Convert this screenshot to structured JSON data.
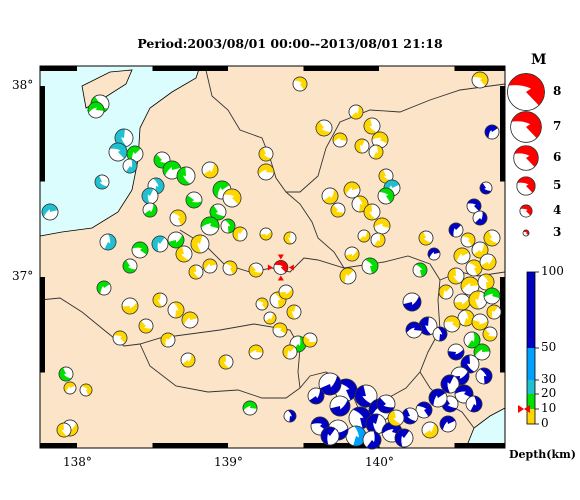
{
  "title": "Period:2003/08/01 00:00--2013/08/01 21:18",
  "lat_ticks": [
    {
      "value": 38,
      "label": "38°"
    },
    {
      "value": 37,
      "label": "37°"
    }
  ],
  "lon_ticks": [
    {
      "value": 138,
      "label": "138°"
    },
    {
      "value": 139,
      "label": "139°"
    },
    {
      "value": 140,
      "label": "140°"
    }
  ],
  "magnitude_legend": {
    "header": "M",
    "items": [
      {
        "m": 8,
        "label": "8"
      },
      {
        "m": 7,
        "label": "7"
      },
      {
        "m": 6,
        "label": "6"
      },
      {
        "m": 5,
        "label": "5"
      },
      {
        "m": 4,
        "label": "4"
      },
      {
        "m": 3,
        "label": "3"
      }
    ]
  },
  "depth_scale": {
    "label": "Depth(km)",
    "ticks": [
      {
        "value": 100,
        "label": "100"
      },
      {
        "value": 50,
        "label": "50"
      },
      {
        "value": 30,
        "label": "30"
      },
      {
        "value": 20,
        "label": "20"
      },
      {
        "value": 10,
        "label": "10"
      },
      {
        "value": 0,
        "label": "0"
      }
    ],
    "marker_depth": 10,
    "colors": {
      "shallow": "#ffd700",
      "mid1": "#00e000",
      "mid2": "#20c0d0",
      "mid3": "#00a0ff",
      "deep": "#0000c0"
    }
  },
  "map_colors": {
    "land": "#fbe4c8",
    "sea": "#dcfdfe",
    "outline": "#000000",
    "target": "#ff0000"
  },
  "target_event": {
    "lon": 139.35,
    "lat": 37.05,
    "depth_km": 10
  }
}
